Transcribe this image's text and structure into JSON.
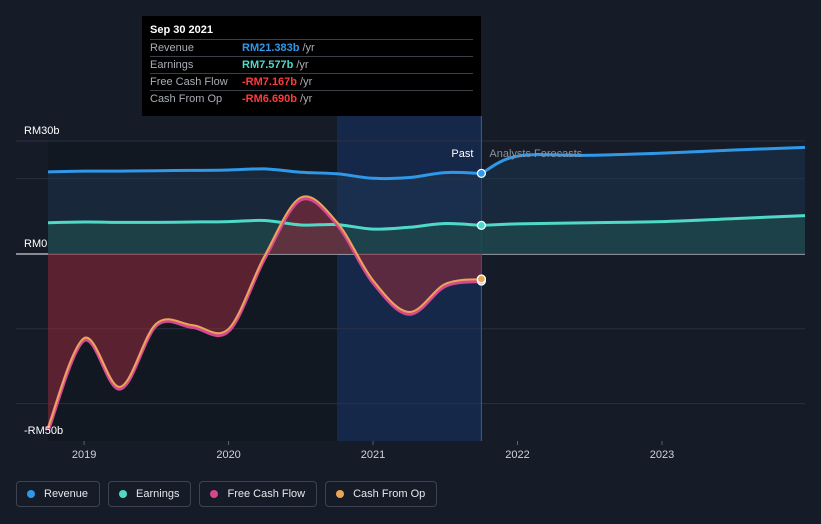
{
  "tooltip": {
    "date": "Sep 30 2021",
    "rows": [
      {
        "label": "Revenue",
        "value": "RM21.383b",
        "unit": "/yr",
        "color": "#2f98e8"
      },
      {
        "label": "Earnings",
        "value": "RM7.577b",
        "unit": "/yr",
        "color": "#4fd9c7"
      },
      {
        "label": "Free Cash Flow",
        "value": "-RM7.167b",
        "unit": "/yr",
        "color": "#ff3a3a"
      },
      {
        "label": "Cash From Op",
        "value": "-RM6.690b",
        "unit": "/yr",
        "color": "#ff3a3a"
      }
    ]
  },
  "legend": [
    {
      "label": "Revenue",
      "color": "#2f98e8"
    },
    {
      "label": "Earnings",
      "color": "#4fd9c7"
    },
    {
      "label": "Free Cash Flow",
      "color": "#d5478f"
    },
    {
      "label": "Cash From Op",
      "color": "#e8a657"
    }
  ],
  "chart_data": {
    "type": "line",
    "title": "",
    "xlabel": "",
    "ylabel": "",
    "xlim": [
      2018.75,
      2023.99
    ],
    "ylim": [
      -50,
      30
    ],
    "y_ticks": [
      {
        "value": 30,
        "label": "RM30b"
      },
      {
        "value": 0,
        "label": "RM0"
      },
      {
        "value": -50,
        "label": "-RM50b"
      }
    ],
    "x_ticks": [
      {
        "value": 2019,
        "label": "2019"
      },
      {
        "value": 2020,
        "label": "2020"
      },
      {
        "value": 2021,
        "label": "2021"
      },
      {
        "value": 2022,
        "label": "2022"
      },
      {
        "value": 2023,
        "label": "2023"
      }
    ],
    "past_label": "Past",
    "forecast_label": "Analysts Forecasts",
    "past_start": 2020.75,
    "divider_x": 2021.75,
    "series": [
      {
        "name": "Revenue",
        "color": "#2f98e8",
        "points": [
          [
            2018.75,
            21.8
          ],
          [
            2019.0,
            22.0
          ],
          [
            2019.25,
            22.0
          ],
          [
            2019.5,
            22.1
          ],
          [
            2019.75,
            22.2
          ],
          [
            2020.0,
            22.3
          ],
          [
            2020.25,
            22.6
          ],
          [
            2020.5,
            21.7
          ],
          [
            2020.75,
            21.3
          ],
          [
            2021.0,
            20.1
          ],
          [
            2021.25,
            20.3
          ],
          [
            2021.5,
            21.6
          ],
          [
            2021.75,
            21.4
          ]
        ],
        "forecast": [
          [
            2021.75,
            21.4
          ],
          [
            2022.0,
            26.0
          ],
          [
            2022.5,
            26.2
          ],
          [
            2023.0,
            26.8
          ],
          [
            2023.5,
            27.6
          ],
          [
            2023.99,
            28.3
          ]
        ]
      },
      {
        "name": "Earnings",
        "color": "#4fd9c7",
        "points": [
          [
            2018.75,
            8.3
          ],
          [
            2019.0,
            8.5
          ],
          [
            2019.25,
            8.4
          ],
          [
            2019.5,
            8.4
          ],
          [
            2019.75,
            8.5
          ],
          [
            2020.0,
            8.6
          ],
          [
            2020.25,
            8.9
          ],
          [
            2020.5,
            7.7
          ],
          [
            2020.75,
            7.8
          ],
          [
            2021.0,
            6.6
          ],
          [
            2021.25,
            7.1
          ],
          [
            2021.5,
            8.1
          ],
          [
            2021.75,
            7.6
          ]
        ],
        "forecast": [
          [
            2021.75,
            7.6
          ],
          [
            2022.0,
            8.0
          ],
          [
            2022.5,
            8.3
          ],
          [
            2023.0,
            8.6
          ],
          [
            2023.5,
            9.4
          ],
          [
            2023.99,
            10.2
          ]
        ]
      },
      {
        "name": "Free Cash Flow",
        "color": "#d5478f",
        "points": [
          [
            2018.75,
            -47.0
          ],
          [
            2019.0,
            -23.0
          ],
          [
            2019.25,
            -36.0
          ],
          [
            2019.5,
            -19.0
          ],
          [
            2019.75,
            -19.5
          ],
          [
            2020.0,
            -20.5
          ],
          [
            2020.25,
            -1.0
          ],
          [
            2020.5,
            14.5
          ],
          [
            2020.75,
            8.0
          ],
          [
            2021.0,
            -7.5
          ],
          [
            2021.25,
            -16.0
          ],
          [
            2021.5,
            -8.5
          ],
          [
            2021.75,
            -7.2
          ]
        ]
      },
      {
        "name": "Cash From Op",
        "color": "#e8a657",
        "points": [
          [
            2018.75,
            -46.5
          ],
          [
            2019.0,
            -22.5
          ],
          [
            2019.25,
            -35.5
          ],
          [
            2019.5,
            -18.6
          ],
          [
            2019.75,
            -19.0
          ],
          [
            2020.0,
            -20.0
          ],
          [
            2020.25,
            -0.5
          ],
          [
            2020.5,
            15.0
          ],
          [
            2020.75,
            8.5
          ],
          [
            2021.0,
            -7.0
          ],
          [
            2021.25,
            -15.5
          ],
          [
            2021.5,
            -8.0
          ],
          [
            2021.75,
            -6.7
          ]
        ]
      }
    ]
  }
}
